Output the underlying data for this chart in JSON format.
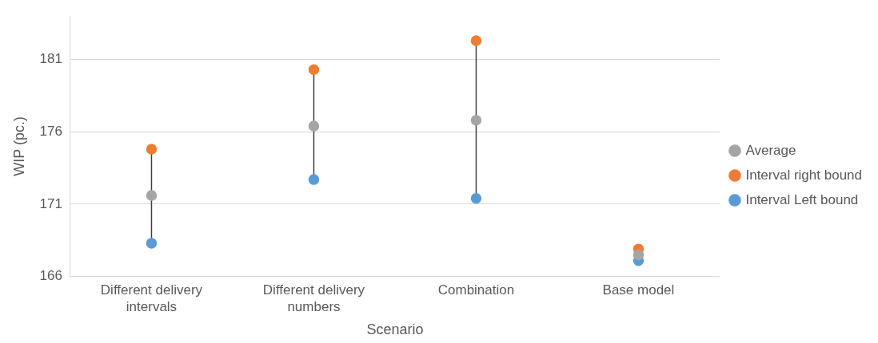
{
  "chart_data": {
    "type": "scatter",
    "xlabel": "Scenario",
    "ylabel": "WIP (pc.)",
    "categories": [
      "Different delivery intervals",
      "Different delivery numbers",
      "Combination",
      "Base model"
    ],
    "series": [
      {
        "name": "Interval Left bound",
        "color": "#5b9bd5",
        "values": [
          168.3,
          172.7,
          171.4,
          167.1
        ]
      },
      {
        "name": "Interval right bound",
        "color": "#ed7d31",
        "values": [
          174.8,
          180.3,
          182.3,
          167.9
        ]
      },
      {
        "name": "Average",
        "color": "#a5a5a5",
        "values": [
          171.6,
          176.4,
          176.8,
          167.5
        ]
      }
    ],
    "ylim": [
      166,
      184
    ],
    "yticks": [
      166,
      171,
      176,
      181
    ],
    "grid": "y",
    "legend": "right",
    "marker": "circle"
  }
}
